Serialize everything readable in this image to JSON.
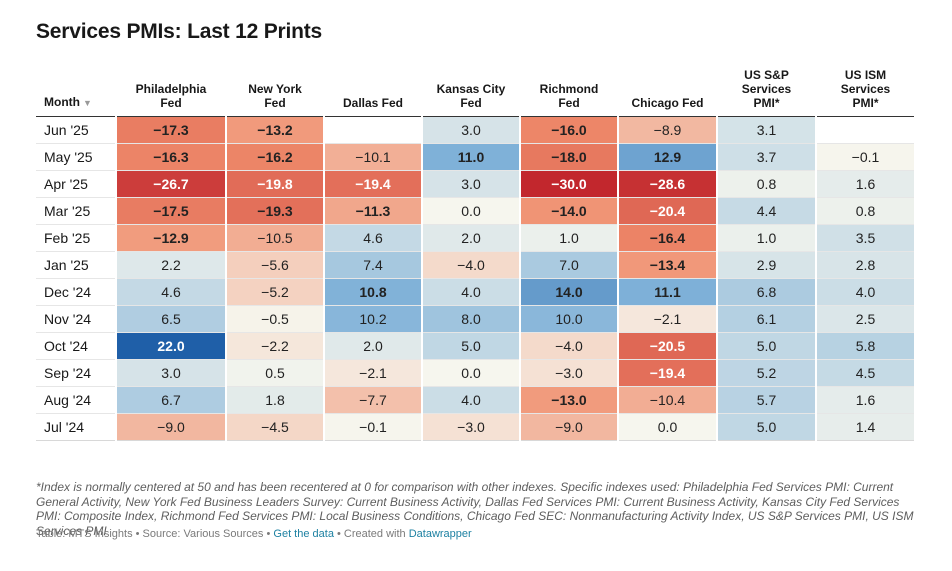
{
  "title": "Services PMIs: Last 12 Prints",
  "chart_data": {
    "type": "table",
    "title": "Services PMIs: Last 12 Prints",
    "month_header": "Month",
    "columns": [
      "Philadelphia Fed",
      "New York Fed",
      "Dallas Fed",
      "Kansas City Fed",
      "Richmond Fed",
      "Chicago Fed",
      "US S&P Services PMI*",
      "US ISM Services PMI*"
    ],
    "rows": [
      {
        "month": "Jun '25",
        "values": [
          -17.3,
          -13.2,
          null,
          3.0,
          -16.0,
          -8.9,
          3.1,
          null
        ]
      },
      {
        "month": "May '25",
        "values": [
          -16.3,
          -16.2,
          -10.1,
          11.0,
          -18.0,
          12.9,
          3.7,
          -0.1
        ]
      },
      {
        "month": "Apr '25",
        "values": [
          -26.7,
          -19.8,
          -19.4,
          3.0,
          -30.0,
          -28.6,
          0.8,
          1.6
        ]
      },
      {
        "month": "Mar '25",
        "values": [
          -17.5,
          -19.3,
          -11.3,
          0.0,
          -14.0,
          -20.4,
          4.4,
          0.8
        ]
      },
      {
        "month": "Feb '25",
        "values": [
          -12.9,
          -10.5,
          4.6,
          2.0,
          1.0,
          -16.4,
          1.0,
          3.5
        ]
      },
      {
        "month": "Jan '25",
        "values": [
          2.2,
          -5.6,
          7.4,
          -4.0,
          7.0,
          -13.4,
          2.9,
          2.8
        ]
      },
      {
        "month": "Dec '24",
        "values": [
          4.6,
          -5.2,
          10.8,
          4.0,
          14.0,
          11.1,
          6.8,
          4.0
        ]
      },
      {
        "month": "Nov '24",
        "values": [
          6.5,
          -0.5,
          10.2,
          8.0,
          10.0,
          -2.1,
          6.1,
          2.5
        ]
      },
      {
        "month": "Oct '24",
        "values": [
          22.0,
          -2.2,
          2.0,
          5.0,
          -4.0,
          -20.5,
          5.0,
          5.8
        ]
      },
      {
        "month": "Sep '24",
        "values": [
          3.0,
          0.5,
          -2.1,
          0.0,
          -3.0,
          -19.4,
          5.2,
          4.5
        ]
      },
      {
        "month": "Aug '24",
        "values": [
          6.7,
          1.8,
          -7.7,
          4.0,
          -13.0,
          -10.4,
          5.7,
          1.6
        ]
      },
      {
        "month": "Jul '24",
        "values": [
          -9.0,
          -4.5,
          -0.1,
          -3.0,
          -9.0,
          0.0,
          5.0,
          1.4
        ]
      }
    ]
  },
  "colors": {
    "negative_strong": "#c2272d",
    "negative_mid": "#f08d6c",
    "neutral": "#f6f6ee",
    "positive_mid": "#7fb1d8",
    "positive_strong": "#1f5fa8"
  },
  "footnote": "*Index is normally centered at 50 and has been recentered at 0 for comparison with other indexes. Specific indexes used: Philadelphia Fed Services PMI: Current General Activity, New York Fed Business Leaders Survey: Current Business Activity, Dallas Fed Services PMI: Current Business Activity, Kansas City Fed Services PMI: Composite Index, Richmond Fed Services PMI: Local Business Conditions, Chicago Fed SEC: Nonmanufacturing Activity Index, US S&P Services PMI, US ISM Services PMI",
  "source": {
    "prefix": "Table: MTS Insights • Source: Various Sources • ",
    "get_data": "Get the data",
    "mid": " • Created with ",
    "tool": "Datawrapper"
  }
}
